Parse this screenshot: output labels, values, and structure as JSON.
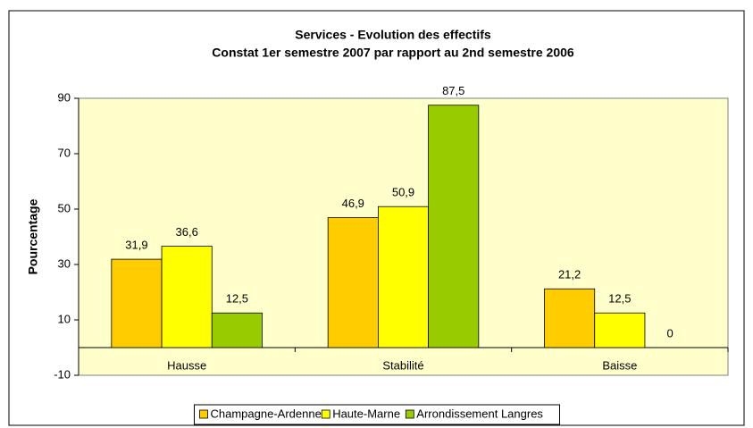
{
  "chart_data": {
    "type": "bar",
    "title": "Services - Evolution des effectifs",
    "subtitle": "Constat 1er semestre 2007 par rapport au 2nd semestre 2006",
    "y_label": "Pourcentage",
    "categories": [
      "Hausse",
      "Stabilité",
      "Baisse"
    ],
    "series": [
      {
        "name": "Champagne-Ardenne",
        "color": "#ffcc00",
        "values": [
          31.9,
          46.9,
          21.2
        ],
        "value_labels": [
          "31,9",
          "46,9",
          "21,2"
        ]
      },
      {
        "name": "Haute-Marne",
        "color": "#ffff00",
        "values": [
          36.6,
          50.9,
          12.5
        ],
        "value_labels": [
          "36,6",
          "50,9",
          "12,5"
        ]
      },
      {
        "name": "Arrondissement Langres",
        "color": "#99cc00",
        "values": [
          12.5,
          87.5,
          0
        ],
        "value_labels": [
          "12,5",
          "87,5",
          "0"
        ]
      }
    ],
    "ylim": [
      -10,
      90
    ],
    "yticks": [
      -10,
      10,
      30,
      50,
      70,
      90
    ],
    "grid": false,
    "legend": "bottom"
  }
}
